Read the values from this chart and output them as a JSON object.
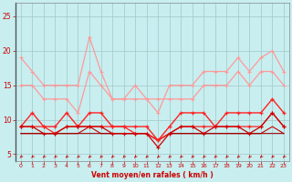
{
  "x": [
    0,
    1,
    2,
    3,
    4,
    5,
    6,
    7,
    8,
    9,
    10,
    11,
    12,
    13,
    14,
    15,
    16,
    17,
    18,
    19,
    20,
    21,
    22,
    23
  ],
  "line_rafale1": [
    19,
    17,
    15,
    15,
    15,
    15,
    22,
    17,
    13,
    13,
    15,
    13,
    11,
    15,
    15,
    15,
    17,
    17,
    17,
    19,
    17,
    19,
    20,
    17
  ],
  "line_rafale2": [
    15,
    15,
    13,
    13,
    13,
    11,
    17,
    15,
    13,
    13,
    13,
    13,
    13,
    13,
    13,
    13,
    15,
    15,
    15,
    17,
    15,
    17,
    17,
    15
  ],
  "line_moy1": [
    9,
    11,
    9,
    9,
    11,
    9,
    11,
    11,
    9,
    9,
    9,
    9,
    7,
    9,
    11,
    11,
    11,
    9,
    11,
    11,
    11,
    11,
    13,
    11
  ],
  "line_moy2": [
    9,
    9,
    9,
    8,
    9,
    9,
    9,
    9,
    9,
    9,
    8,
    8,
    7,
    8,
    9,
    9,
    9,
    9,
    9,
    9,
    9,
    9,
    11,
    9
  ],
  "line_moy3": [
    9,
    9,
    8,
    8,
    9,
    9,
    9,
    9,
    8,
    8,
    8,
    8,
    6,
    8,
    9,
    9,
    8,
    9,
    9,
    9,
    8,
    9,
    11,
    9
  ],
  "line_moy4": [
    8,
    8,
    8,
    8,
    8,
    8,
    9,
    8,
    8,
    8,
    8,
    8,
    7,
    8,
    8,
    8,
    8,
    8,
    8,
    8,
    8,
    8,
    9,
    8
  ],
  "line_moy5": [
    8,
    8,
    8,
    8,
    8,
    8,
    8,
    8,
    8,
    8,
    8,
    8,
    7,
    8,
    8,
    8,
    8,
    8,
    8,
    8,
    8,
    8,
    8,
    8
  ],
  "bg_color": "#c8eef0",
  "grid_color": "#a0c8c8",
  "color_pink": "#ff9999",
  "color_red": "#ff2222",
  "color_darkred": "#cc0000",
  "color_vdarkred": "#990000",
  "xlabel": "Vent moyen/en rafales ( km/h )",
  "ylim": [
    4,
    27
  ],
  "xlim": [
    -0.5,
    23.5
  ],
  "yticks": [
    5,
    10,
    15,
    20,
    25
  ],
  "xticks": [
    0,
    1,
    2,
    3,
    4,
    5,
    6,
    7,
    8,
    9,
    10,
    11,
    12,
    13,
    14,
    15,
    16,
    17,
    18,
    19,
    20,
    21,
    22,
    23
  ]
}
